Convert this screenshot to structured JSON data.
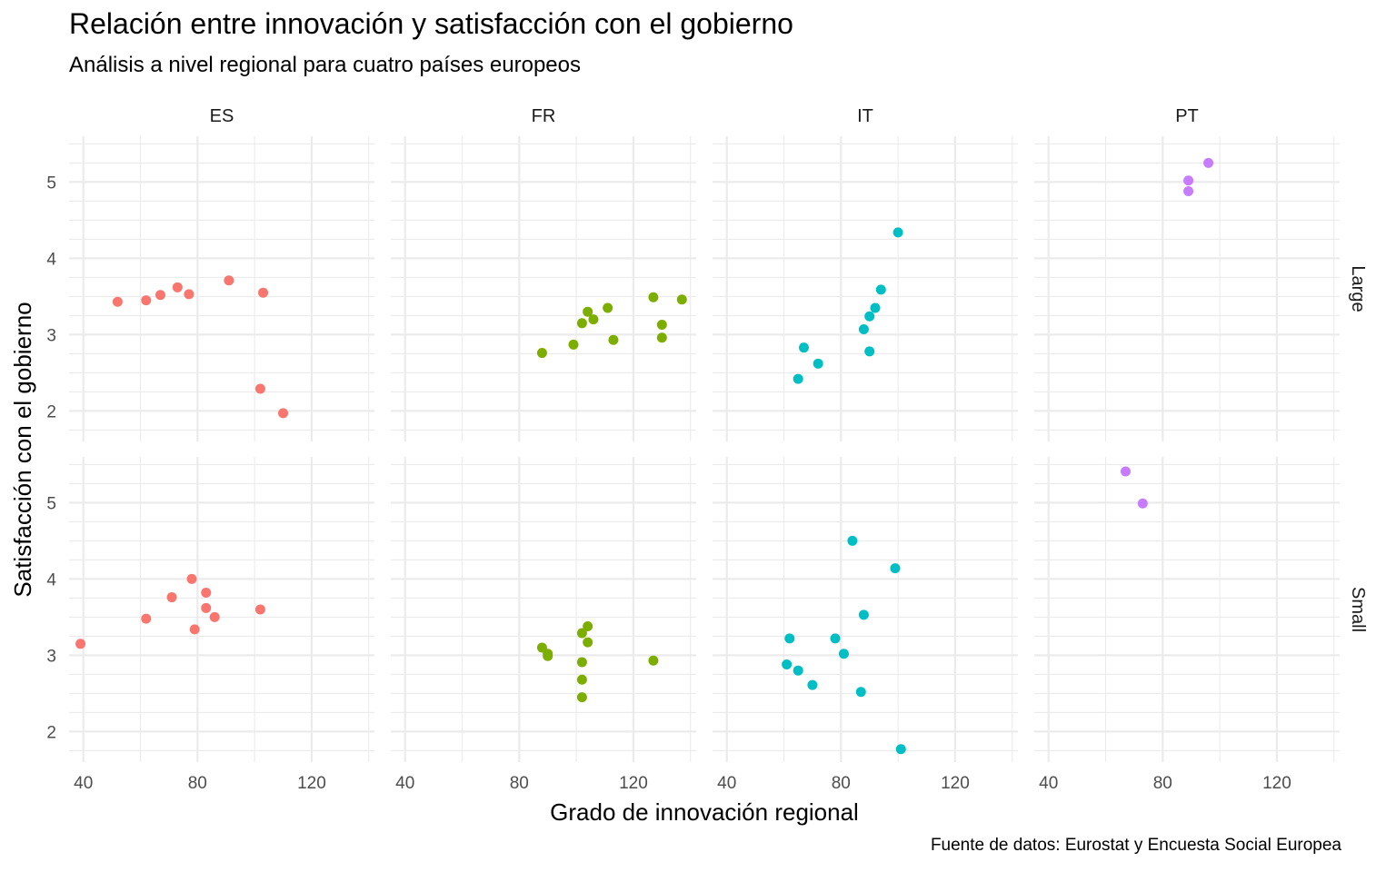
{
  "chart_data": {
    "type": "scatter",
    "title": "Relación entre innovación y satisfacción con el gobierno",
    "subtitle": "Análisis a nivel regional para cuatro países europeos",
    "caption": "Fuente de datos: Eurostat y Encuesta Social Europea",
    "xlabel": "Grado de innovación regional",
    "ylabel": "Satisfacción con el gobierno",
    "xlim": [
      35,
      142
    ],
    "x_ticks": [
      40,
      80,
      120
    ],
    "ylim": [
      1.6,
      5.6
    ],
    "y_ticks": [
      2,
      3,
      4,
      5
    ],
    "grid": true,
    "legend": "none",
    "facet_cols": [
      "ES",
      "FR",
      "IT",
      "PT"
    ],
    "facet_rows": [
      "Large",
      "Small"
    ],
    "colors": {
      "ES": "#f8766d",
      "FR": "#7cae00",
      "IT": "#00bfc4",
      "PT": "#c77cff"
    },
    "panels": [
      {
        "country": "ES",
        "size": "Large",
        "points": [
          [
            52,
            3.43
          ],
          [
            62,
            3.45
          ],
          [
            67,
            3.52
          ],
          [
            73,
            3.62
          ],
          [
            77,
            3.53
          ],
          [
            91,
            3.71
          ],
          [
            103,
            3.55
          ],
          [
            102,
            2.29
          ],
          [
            110,
            1.97
          ]
        ]
      },
      {
        "country": "FR",
        "size": "Large",
        "points": [
          [
            88,
            2.76
          ],
          [
            99,
            2.87
          ],
          [
            102,
            3.15
          ],
          [
            104,
            3.3
          ],
          [
            106,
            3.2
          ],
          [
            111,
            3.35
          ],
          [
            113,
            2.93
          ],
          [
            127,
            3.49
          ],
          [
            130,
            3.13
          ],
          [
            130,
            2.96
          ],
          [
            137,
            3.46
          ]
        ]
      },
      {
        "country": "IT",
        "size": "Large",
        "points": [
          [
            65,
            2.42
          ],
          [
            67,
            2.83
          ],
          [
            72,
            2.62
          ],
          [
            88,
            3.07
          ],
          [
            90,
            3.24
          ],
          [
            90,
            2.78
          ],
          [
            92,
            3.35
          ],
          [
            94,
            3.59
          ],
          [
            100,
            4.34
          ]
        ]
      },
      {
        "country": "PT",
        "size": "Large",
        "points": [
          [
            89,
            5.02
          ],
          [
            89,
            4.88
          ],
          [
            96,
            5.25
          ]
        ]
      },
      {
        "country": "ES",
        "size": "Small",
        "points": [
          [
            39,
            3.15
          ],
          [
            62,
            3.48
          ],
          [
            71,
            3.76
          ],
          [
            78,
            4.0
          ],
          [
            79,
            3.34
          ],
          [
            83,
            3.82
          ],
          [
            83,
            3.62
          ],
          [
            86,
            3.5
          ],
          [
            102,
            3.6
          ]
        ]
      },
      {
        "country": "FR",
        "size": "Small",
        "points": [
          [
            88,
            3.1
          ],
          [
            90,
            3.02
          ],
          [
            90,
            2.99
          ],
          [
            102,
            3.29
          ],
          [
            104,
            3.38
          ],
          [
            104,
            3.17
          ],
          [
            102,
            2.91
          ],
          [
            102,
            2.68
          ],
          [
            102,
            2.45
          ],
          [
            127,
            2.93
          ]
        ]
      },
      {
        "country": "IT",
        "size": "Small",
        "points": [
          [
            62,
            3.22
          ],
          [
            61,
            2.88
          ],
          [
            65,
            2.8
          ],
          [
            70,
            2.61
          ],
          [
            78,
            3.22
          ],
          [
            81,
            3.02
          ],
          [
            84,
            4.5
          ],
          [
            87,
            2.52
          ],
          [
            88,
            3.53
          ],
          [
            99,
            4.14
          ],
          [
            101,
            1.77
          ]
        ]
      },
      {
        "country": "PT",
        "size": "Small",
        "points": [
          [
            67,
            5.41
          ],
          [
            73,
            4.99
          ]
        ]
      }
    ]
  }
}
